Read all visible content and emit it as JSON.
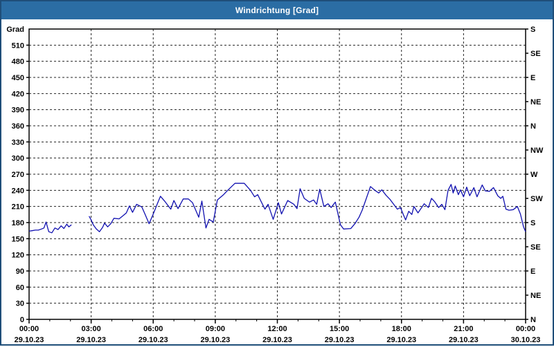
{
  "title_bar": {
    "title": "Windrichtung [Grad]",
    "bg_color": "#2b6da4",
    "text_color": "#ffffff",
    "border_color": "#1f4e79"
  },
  "chart_data": {
    "type": "line",
    "title": "Windrichtung [Grad]",
    "ylabel_left": "Grad",
    "ylim": [
      0,
      540
    ],
    "xlim_hours": [
      0,
      24
    ],
    "grid": {
      "x_step_hours": 3,
      "y_step_deg": 30,
      "minor_tick_hours": 1,
      "style": "dashed"
    },
    "line_color": "#1010b0",
    "axis_color": "#000000",
    "y_left_ticks": [
      0,
      30,
      60,
      90,
      120,
      150,
      180,
      210,
      240,
      270,
      300,
      330,
      360,
      390,
      420,
      450,
      480,
      510
    ],
    "y_right": [
      {
        "deg": 0,
        "label": "N"
      },
      {
        "deg": 45,
        "label": "NE"
      },
      {
        "deg": 90,
        "label": "E"
      },
      {
        "deg": 135,
        "label": "SE"
      },
      {
        "deg": 180,
        "label": "S"
      },
      {
        "deg": 225,
        "label": "SW"
      },
      {
        "deg": 270,
        "label": "W"
      },
      {
        "deg": 315,
        "label": "NW"
      },
      {
        "deg": 360,
        "label": "N"
      },
      {
        "deg": 405,
        "label": "NE"
      },
      {
        "deg": 450,
        "label": "E"
      },
      {
        "deg": 495,
        "label": "SE"
      },
      {
        "deg": 540,
        "label": "S"
      }
    ],
    "x_major": [
      {
        "hour": 0,
        "time": "00:00",
        "date": "29.10.23"
      },
      {
        "hour": 3,
        "time": "03:00",
        "date": "29.10.23"
      },
      {
        "hour": 6,
        "time": "06:00",
        "date": "29.10.23"
      },
      {
        "hour": 9,
        "time": "09:00",
        "date": "29.10.23"
      },
      {
        "hour": 12,
        "time": "12:00",
        "date": "29.10.23"
      },
      {
        "hour": 15,
        "time": "15:00",
        "date": "29.10.23"
      },
      {
        "hour": 18,
        "time": "18:00",
        "date": "29.10.23"
      },
      {
        "hour": 21,
        "time": "21:00",
        "date": "29.10.23"
      },
      {
        "hour": 24,
        "time": "00:00",
        "date": "30.10.23"
      }
    ],
    "series": [
      {
        "name": "Windrichtung",
        "segments": [
          [
            [
              0.0,
              164
            ],
            [
              0.15,
              165
            ],
            [
              0.3,
              166
            ],
            [
              0.45,
              166
            ],
            [
              0.6,
              168
            ],
            [
              0.72,
              170
            ],
            [
              0.82,
              181
            ],
            [
              0.95,
              163
            ],
            [
              1.1,
              161
            ],
            [
              1.25,
              170
            ],
            [
              1.4,
              167
            ],
            [
              1.55,
              174
            ],
            [
              1.68,
              169
            ],
            [
              1.82,
              177
            ],
            [
              1.92,
              172
            ],
            [
              2.05,
              176
            ]
          ],
          [
            [
              2.9,
              192
            ],
            [
              3.0,
              185
            ],
            [
              3.1,
              176
            ],
            [
              3.25,
              168
            ],
            [
              3.4,
              163
            ],
            [
              3.55,
              171
            ],
            [
              3.65,
              179
            ],
            [
              3.8,
              172
            ],
            [
              3.95,
              178
            ],
            [
              4.1,
              188
            ],
            [
              4.35,
              187
            ],
            [
              4.55,
              193
            ],
            [
              4.7,
              198
            ],
            [
              4.85,
              211
            ],
            [
              5.0,
              199
            ],
            [
              5.2,
              214
            ],
            [
              5.45,
              209
            ],
            [
              5.6,
              196
            ],
            [
              5.8,
              178
            ],
            [
              6.0,
              196
            ],
            [
              6.2,
              215
            ],
            [
              6.35,
              229
            ],
            [
              6.55,
              220
            ],
            [
              6.85,
              205
            ],
            [
              7.0,
              221
            ],
            [
              7.2,
              206
            ],
            [
              7.45,
              224
            ],
            [
              7.7,
              224
            ],
            [
              7.9,
              217
            ],
            [
              8.2,
              190
            ],
            [
              8.35,
              220
            ],
            [
              8.55,
              170
            ],
            [
              8.7,
              186
            ],
            [
              8.9,
              181
            ],
            [
              9.1,
              222
            ],
            [
              9.4,
              232
            ],
            [
              9.6,
              240
            ],
            [
              9.95,
              253
            ],
            [
              10.4,
              253
            ],
            [
              10.7,
              240
            ],
            [
              10.9,
              228
            ],
            [
              11.05,
              232
            ],
            [
              11.4,
              205
            ],
            [
              11.55,
              214
            ],
            [
              11.8,
              186
            ],
            [
              12.05,
              217
            ],
            [
              12.2,
              196
            ],
            [
              12.5,
              221
            ],
            [
              12.8,
              214
            ],
            [
              12.95,
              206
            ],
            [
              13.1,
              243
            ],
            [
              13.3,
              225
            ],
            [
              13.55,
              218
            ],
            [
              13.75,
              222
            ],
            [
              13.9,
              214
            ],
            [
              14.05,
              242
            ],
            [
              14.25,
              210
            ],
            [
              14.45,
              215
            ],
            [
              14.6,
              208
            ],
            [
              14.8,
              218
            ],
            [
              15.05,
              176
            ],
            [
              15.2,
              168
            ],
            [
              15.55,
              169
            ],
            [
              15.75,
              178
            ],
            [
              15.95,
              190
            ],
            [
              16.1,
              203
            ],
            [
              16.3,
              225
            ],
            [
              16.5,
              247
            ],
            [
              16.75,
              239
            ],
            [
              16.9,
              235
            ],
            [
              17.05,
              241
            ],
            [
              17.25,
              231
            ],
            [
              17.45,
              223
            ],
            [
              17.8,
              205
            ],
            [
              17.95,
              208
            ],
            [
              18.1,
              194
            ],
            [
              18.2,
              185
            ],
            [
              18.35,
              201
            ],
            [
              18.5,
              195
            ],
            [
              18.6,
              210
            ],
            [
              18.8,
              198
            ],
            [
              19.1,
              215
            ],
            [
              19.3,
              208
            ],
            [
              19.45,
              225
            ],
            [
              19.6,
              219
            ],
            [
              19.8,
              208
            ],
            [
              19.95,
              214
            ],
            [
              20.1,
              204
            ],
            [
              20.25,
              240
            ],
            [
              20.4,
              251
            ],
            [
              20.5,
              235
            ],
            [
              20.6,
              248
            ],
            [
              20.75,
              232
            ],
            [
              20.85,
              241
            ],
            [
              21.0,
              228
            ],
            [
              21.15,
              246
            ],
            [
              21.3,
              230
            ],
            [
              21.5,
              245
            ],
            [
              21.65,
              228
            ],
            [
              21.9,
              250
            ],
            [
              22.05,
              239
            ],
            [
              22.25,
              238
            ],
            [
              22.45,
              245
            ],
            [
              22.65,
              230
            ],
            [
              22.8,
              225
            ],
            [
              22.9,
              229
            ],
            [
              23.05,
              205
            ],
            [
              23.2,
              203
            ],
            [
              23.4,
              204
            ],
            [
              23.6,
              210
            ],
            [
              23.75,
              196
            ],
            [
              23.9,
              172
            ],
            [
              24.0,
              163
            ]
          ]
        ]
      }
    ]
  }
}
